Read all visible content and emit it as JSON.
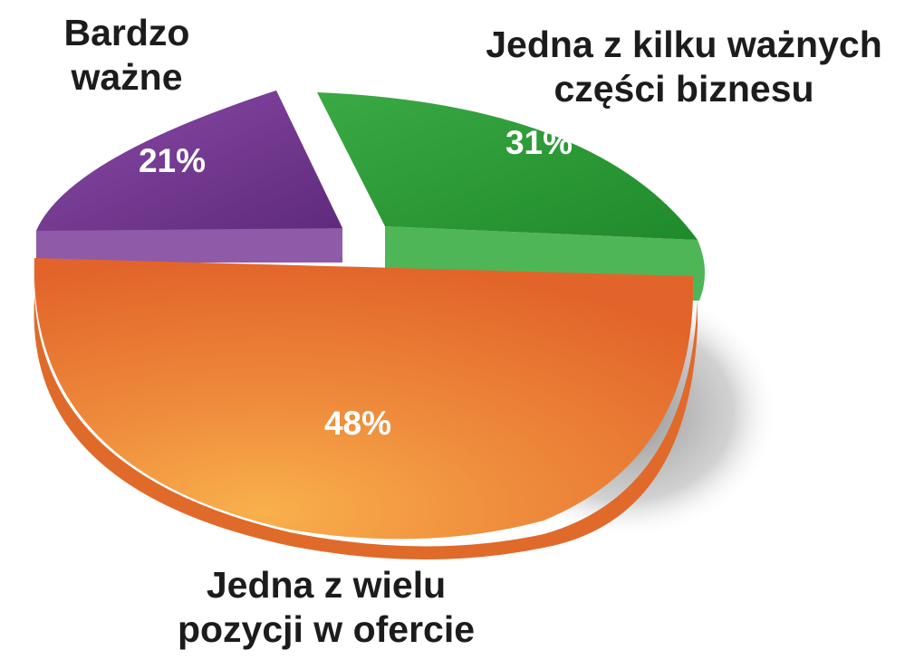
{
  "chart_data": {
    "type": "pie",
    "slices": [
      {
        "label_lines": [
          "Bardzo",
          "ważne"
        ],
        "value": 21,
        "value_label": "21%",
        "color": "#6b3187"
      },
      {
        "label_lines": [
          "Jedna z kilku ważnych",
          "części biznesu"
        ],
        "value": 31,
        "value_label": "31%",
        "color": "#24952f"
      },
      {
        "label_lines": [
          "Jedna z wielu",
          "pozycji w ofercie"
        ],
        "value": 48,
        "value_label": "48%",
        "color": "#e8702d"
      }
    ]
  }
}
